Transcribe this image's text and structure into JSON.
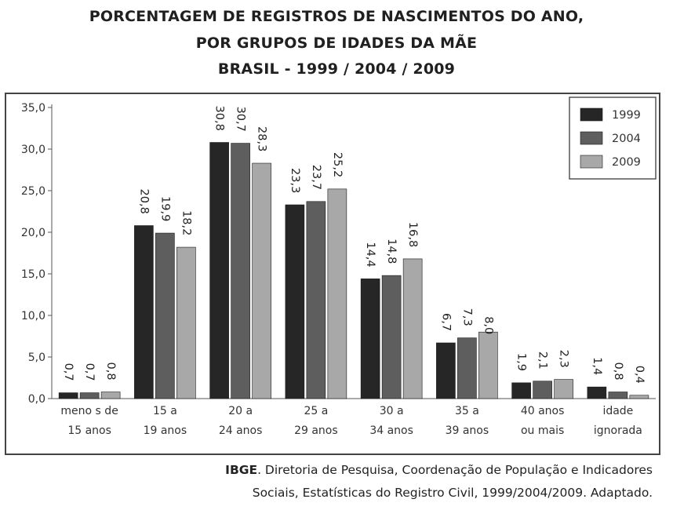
{
  "header": {
    "line1": "PORCENTAGEM DE REGISTROS DE NASCIMENTOS DO ANO,",
    "line2": "POR GRUPOS DE IDADES DA MÃE",
    "line3": "BRASIL - 1999 / 2004 / 2009"
  },
  "source": {
    "org": "IBGE",
    "line1_rest": ". Diretoria de Pesquisa, Coordenação de População e Indicadores",
    "line2": "Sociais, Estatísticas do Registro Civil, 1999/2004/2009. Adaptado."
  },
  "colors": {
    "1999": "#262626",
    "2004": "#5e5e5e",
    "2009": "#a8a8a8"
  },
  "chart_data": {
    "type": "bar",
    "title": "PORCENTAGEM DE REGISTROS DE NASCIMENTOS DO ANO, POR GRUPOS DE IDADES DA MÃE BRASIL - 1999 / 2004 / 2009",
    "categories": [
      [
        "meno s de",
        "15 anos"
      ],
      [
        "15 a",
        "19 anos"
      ],
      [
        "20 a",
        "24 anos"
      ],
      [
        "25 a",
        "29 anos"
      ],
      [
        "30 a",
        "34 anos"
      ],
      [
        "35 a",
        "39 anos"
      ],
      [
        "40 anos",
        "ou mais"
      ],
      [
        "idade",
        "ignorada"
      ]
    ],
    "series": [
      {
        "name": "1999",
        "values": [
          0.7,
          20.8,
          30.8,
          23.3,
          14.4,
          6.7,
          1.9,
          1.4
        ]
      },
      {
        "name": "2004",
        "values": [
          0.7,
          19.9,
          30.7,
          23.7,
          14.8,
          7.3,
          2.1,
          0.8
        ]
      },
      {
        "name": "2009",
        "values": [
          0.8,
          18.2,
          28.3,
          25.2,
          16.8,
          8.0,
          2.3,
          0.4
        ]
      }
    ],
    "yticks": [
      "0,0",
      "5,0",
      "10,0",
      "15,0",
      "20,0",
      "25,0",
      "30,0",
      "35,0"
    ],
    "ylim": [
      0,
      35
    ],
    "legend_position": "top-right",
    "grid": false
  }
}
